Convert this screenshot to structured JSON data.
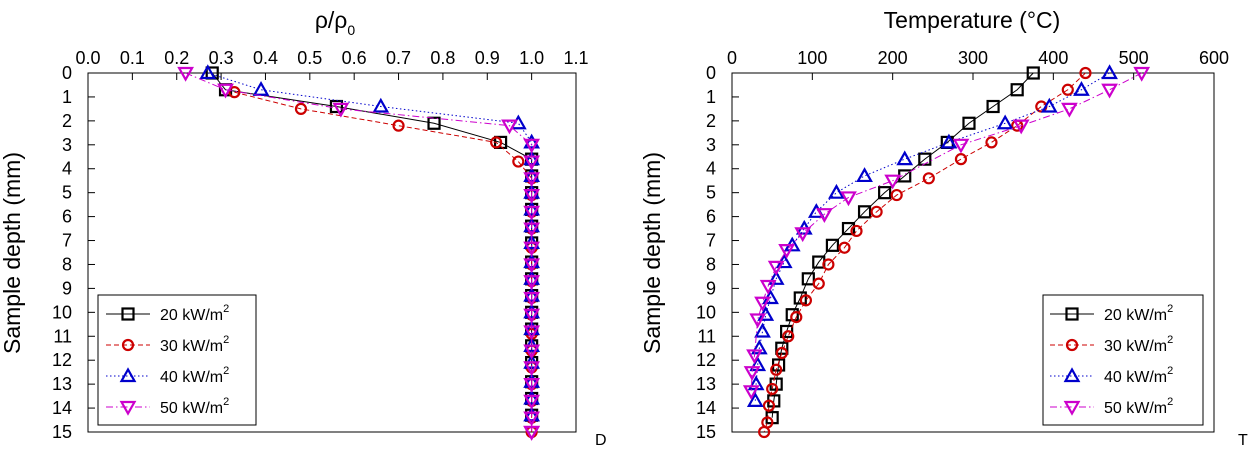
{
  "chart_data": [
    {
      "type": "line",
      "title": "",
      "xlabel": "ρ/ρ0",
      "ylabel": "Sample depth (mm)",
      "corner_label": "D",
      "xlim": [
        0,
        1.1
      ],
      "ylim": [
        0,
        15
      ],
      "x_ticks": [
        "0.0",
        "0.1",
        "0.2",
        "0.3",
        "0.4",
        "0.5",
        "0.6",
        "0.7",
        "0.8",
        "0.9",
        "1.0",
        "1.1"
      ],
      "y_ticks": [
        "0",
        "1",
        "2",
        "3",
        "4",
        "5",
        "6",
        "7",
        "8",
        "9",
        "10",
        "11",
        "12",
        "13",
        "14",
        "15"
      ],
      "x_axis_position": "top",
      "y_axis_inverted": true,
      "grid": false,
      "legend_position": "bottom-left",
      "series": [
        {
          "name": "20 kW/m2",
          "color": "#000000",
          "marker": "square",
          "line": "solid",
          "x": [
            0.28,
            0.31,
            0.56,
            0.78,
            0.93,
            1.0,
            1.0,
            1.0,
            1.0,
            1.0,
            1.0,
            1.0,
            1.0,
            1.0,
            1.0,
            1.0,
            1.0,
            1.0,
            1.0,
            1.0,
            1.0
          ],
          "y": [
            0,
            0.7,
            1.4,
            2.1,
            2.9,
            3.6,
            4.3,
            5.0,
            5.7,
            6.4,
            7.1,
            7.9,
            8.6,
            9.3,
            10.0,
            10.7,
            11.4,
            12.1,
            12.9,
            13.6,
            14.3
          ]
        },
        {
          "name": "30 kW/m2",
          "color": "#cc0000",
          "marker": "circle",
          "line": "dashed",
          "x": [
            0.33,
            0.48,
            0.7,
            0.92,
            0.97,
            1.0,
            1.0,
            1.0,
            1.0,
            1.0,
            1.0,
            1.0,
            1.0,
            1.0,
            1.0,
            1.0,
            1.0,
            1.0,
            1.0,
            1.0,
            1.0
          ],
          "y": [
            0.8,
            1.5,
            2.2,
            2.9,
            3.7,
            4.4,
            5.1,
            5.8,
            6.5,
            7.3,
            8.0,
            8.7,
            9.4,
            10.1,
            10.9,
            11.6,
            12.3,
            13.0,
            13.7,
            14.4,
            15.0
          ]
        },
        {
          "name": "40 kW/m2",
          "color": "#0000cc",
          "marker": "triangle-up",
          "line": "dotted",
          "x": [
            0.27,
            0.39,
            0.66,
            0.97,
            1.0,
            1.0,
            1.0,
            1.0,
            1.0,
            1.0,
            1.0,
            1.0,
            1.0,
            1.0,
            1.0,
            1.0,
            1.0,
            1.0,
            1.0,
            1.0,
            1.0
          ],
          "y": [
            0,
            0.7,
            1.4,
            2.1,
            2.9,
            3.6,
            4.3,
            5.0,
            5.7,
            6.4,
            7.1,
            7.9,
            8.6,
            9.3,
            10.0,
            10.7,
            11.4,
            12.1,
            12.9,
            13.6,
            14.3
          ]
        },
        {
          "name": "50 kW/m2",
          "color": "#cc00cc",
          "marker": "triangle-down",
          "line": "dashdot",
          "x": [
            0.22,
            0.31,
            0.57,
            0.95,
            1.0,
            1.0,
            1.0,
            1.0,
            1.0,
            1.0,
            1.0,
            1.0,
            1.0,
            1.0,
            1.0,
            1.0,
            1.0,
            1.0,
            1.0,
            1.0,
            1.0,
            1.0,
            1.0
          ],
          "y": [
            0,
            0.7,
            1.5,
            2.2,
            3.0,
            3.7,
            4.4,
            5.1,
            5.8,
            6.5,
            7.3,
            8.0,
            8.7,
            9.4,
            10.1,
            10.8,
            11.6,
            12.3,
            13.0,
            13.7,
            14.4,
            15.0,
            15.0
          ]
        }
      ],
      "legend_entries": [
        {
          "label": "20 kW/m",
          "sup": "2"
        },
        {
          "label": "30 kW/m",
          "sup": "2"
        },
        {
          "label": "40 kW/m",
          "sup": "2"
        },
        {
          "label": "50 kW/m",
          "sup": "2"
        }
      ]
    },
    {
      "type": "line",
      "title": "",
      "xlabel": "Temperature (°C)",
      "ylabel": "Sample depth (mm)",
      "corner_label": "T",
      "xlim": [
        0,
        600
      ],
      "ylim": [
        0,
        15
      ],
      "x_ticks": [
        "0",
        "100",
        "200",
        "300",
        "400",
        "500",
        "600"
      ],
      "y_ticks": [
        "0",
        "1",
        "2",
        "3",
        "4",
        "5",
        "6",
        "7",
        "8",
        "9",
        "10",
        "11",
        "12",
        "13",
        "14",
        "15"
      ],
      "x_axis_position": "top",
      "y_axis_inverted": true,
      "grid": false,
      "legend_position": "bottom-right",
      "series": [
        {
          "name": "20 kW/m2",
          "color": "#000000",
          "marker": "square",
          "line": "solid",
          "x": [
            375,
            355,
            325,
            295,
            268,
            240,
            215,
            190,
            165,
            145,
            125,
            108,
            95,
            85,
            75,
            68,
            62,
            58,
            55,
            52,
            50
          ],
          "y": [
            0,
            0.7,
            1.4,
            2.1,
            2.9,
            3.6,
            4.3,
            5.0,
            5.8,
            6.5,
            7.2,
            7.9,
            8.6,
            9.4,
            10.1,
            10.8,
            11.5,
            12.2,
            13.0,
            13.7,
            14.4
          ]
        },
        {
          "name": "30 kW/m2",
          "color": "#cc0000",
          "marker": "circle",
          "line": "dashed",
          "x": [
            440,
            418,
            385,
            355,
            323,
            285,
            245,
            205,
            180,
            155,
            140,
            120,
            108,
            92,
            80,
            70,
            62,
            55,
            50,
            46,
            44,
            40
          ],
          "y": [
            0,
            0.7,
            1.4,
            2.2,
            2.9,
            3.6,
            4.4,
            5.1,
            5.8,
            6.6,
            7.3,
            8.0,
            8.8,
            9.5,
            10.2,
            11.0,
            11.7,
            12.4,
            13.2,
            13.9,
            14.6,
            15.0
          ]
        },
        {
          "name": "40 kW/m2",
          "color": "#0000cc",
          "marker": "triangle-up",
          "line": "dotted",
          "x": [
            470,
            435,
            395,
            340,
            270,
            215,
            165,
            130,
            105,
            90,
            75,
            65,
            55,
            48,
            42,
            38,
            34,
            32,
            30,
            29
          ],
          "y": [
            0,
            0.7,
            1.4,
            2.1,
            2.9,
            3.6,
            4.3,
            5.0,
            5.8,
            6.5,
            7.2,
            7.9,
            8.6,
            9.4,
            10.1,
            10.8,
            11.5,
            12.2,
            13.0,
            13.7
          ]
        },
        {
          "name": "50 kW/m2",
          "color": "#cc00cc",
          "marker": "triangle-down",
          "line": "dashdot",
          "x": [
            510,
            470,
            420,
            360,
            285,
            200,
            145,
            115,
            88,
            68,
            55,
            45,
            38,
            32,
            28,
            25,
            24
          ],
          "y": [
            0,
            0.7,
            1.5,
            2.2,
            3.0,
            4.5,
            5.2,
            5.9,
            6.7,
            7.4,
            8.1,
            8.9,
            9.6,
            10.3,
            11.8,
            12.5,
            13.3
          ]
        }
      ],
      "legend_entries": [
        {
          "label": "20 kW/m",
          "sup": "2"
        },
        {
          "label": "30 kW/m",
          "sup": "2"
        },
        {
          "label": "40 kW/m",
          "sup": "2"
        },
        {
          "label": "50 kW/m",
          "sup": "2"
        }
      ]
    }
  ]
}
